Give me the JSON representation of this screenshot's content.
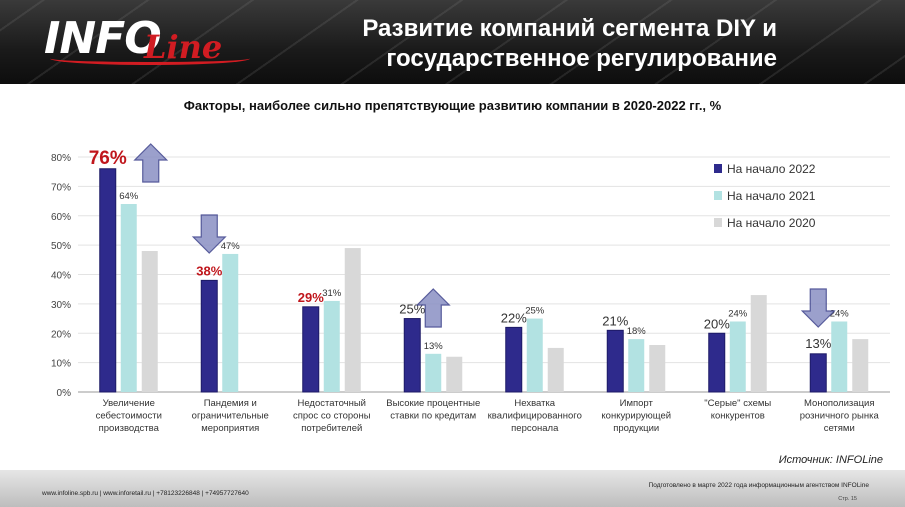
{
  "header": {
    "logo_text": "INFO",
    "logo_script": "Line",
    "title_line1": "Развитие компаний сегмента DIY и",
    "title_line2": "государственное регулирование"
  },
  "source": "Источник: INFOLine",
  "footer": {
    "contacts": "www.infoline.spb.ru | www.inforetail.ru | +78123226848 | +74957727640",
    "prepared": "Подготовлено в марте 2022 года информационным агентством INFOLine",
    "page": "Стр. 15"
  },
  "colors": {
    "s2022": "#2e2a8c",
    "s2021": "#b2e2e2",
    "s2020": "#d8d8d8",
    "highlight": "#c0161c",
    "arrow": "#8a90c4"
  },
  "chart_data": {
    "type": "bar",
    "title": "Факторы, наиболее сильно препятствующие развитию компании в 2020-2022 гг., %",
    "ylim": [
      0,
      80
    ],
    "yticks": [
      "0%",
      "10%",
      "20%",
      "30%",
      "40%",
      "50%",
      "60%",
      "70%",
      "80%"
    ],
    "grid": true,
    "legend_position": "top-right",
    "categories": [
      "Увеличение себестоимости производства",
      "Пандемия и ограничительные мероприятия",
      "Недостаточный спрос со стороны потребителей",
      "Высокие процентные ставки по кредитам",
      "Нехватка квалифицированного персонала",
      "Импорт конкурирующей продукции",
      "\"Серые\" схемы конкурентов",
      "Монополизация розничного рынка сетями"
    ],
    "category_lines": [
      [
        "Увеличение",
        "себестоимости",
        "производства"
      ],
      [
        "Пандемия и",
        "ограничительные",
        "мероприятия"
      ],
      [
        "Недостаточный",
        "спрос со стороны",
        "потребителей"
      ],
      [
        "Высокие процентные",
        "ставки по кредитам"
      ],
      [
        "Нехватка",
        "квалифицированного",
        "персонала"
      ],
      [
        "Импорт",
        "конкурирующей",
        "продукции"
      ],
      [
        "\"Серые\" схемы",
        "конкурентов"
      ],
      [
        "Монополизация",
        "розничного рынка",
        "сетями"
      ]
    ],
    "series": [
      {
        "name": "На начало 2022",
        "values": [
          76,
          38,
          29,
          25,
          22,
          21,
          20,
          13
        ],
        "labels": [
          "76%",
          "38%",
          "29%",
          "25%",
          "22%",
          "21%",
          "20%",
          "13%"
        ]
      },
      {
        "name": "На начало 2021",
        "values": [
          64,
          47,
          31,
          13,
          25,
          18,
          24,
          24
        ],
        "labels": [
          "64%",
          "47%",
          "31%",
          "13%",
          "25%",
          "18%",
          "24%",
          "24%"
        ]
      },
      {
        "name": "На начало 2020",
        "values": [
          48,
          null,
          49,
          12,
          15,
          16,
          33,
          18
        ]
      }
    ],
    "highlighted_2022_labels": [
      0,
      1,
      2
    ],
    "arrows": [
      {
        "category": 0,
        "direction": "up"
      },
      {
        "category": 1,
        "direction": "down"
      },
      {
        "category": 3,
        "direction": "up"
      },
      {
        "category": 7,
        "direction": "down"
      }
    ]
  }
}
